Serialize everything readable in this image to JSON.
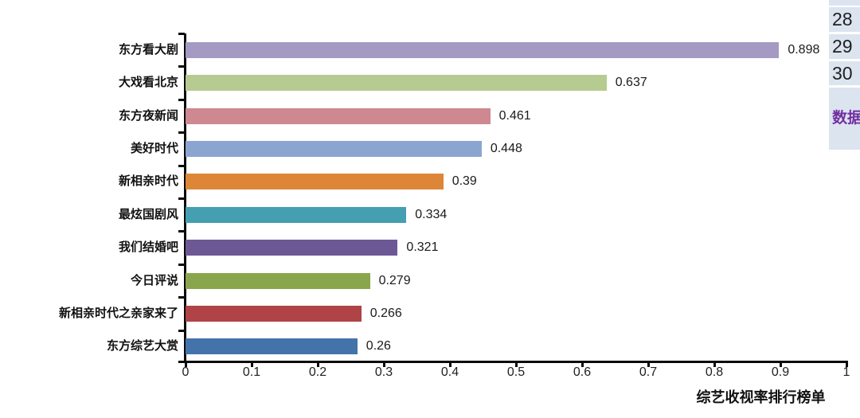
{
  "chart_data": {
    "type": "bar",
    "orientation": "horizontal",
    "title": "",
    "xlabel": "综艺收视率排行榜单",
    "ylabel": "",
    "categories": [
      "东方看大剧",
      "大戏看北京",
      "东方夜新闻",
      "美好时代",
      "新相亲时代",
      "最炫国剧风",
      "我们结婚吧",
      "今日评说",
      "新相亲时代之亲家来了",
      "东方综艺大赏"
    ],
    "values": [
      0.898,
      0.637,
      0.461,
      0.448,
      0.39,
      0.334,
      0.321,
      0.279,
      0.266,
      0.26
    ],
    "value_labels": [
      "0.898",
      "0.637",
      "0.461",
      "0.448",
      "0.39",
      "0.334",
      "0.321",
      "0.279",
      "0.266",
      "0.26"
    ],
    "bar_colors": [
      "#a49ac4",
      "#b5cb90",
      "#cd8890",
      "#8ba5d1",
      "#dd8638",
      "#449fb0",
      "#6d5896",
      "#8aa64c",
      "#af4345",
      "#4473ac"
    ],
    "xlim": [
      0,
      1
    ],
    "x_ticks": [
      0,
      0.1,
      0.2,
      0.3,
      0.4,
      0.5,
      0.6,
      0.7,
      0.8,
      0.9,
      1
    ],
    "x_tick_labels": [
      "0",
      "0.1",
      "0.2",
      "0.3",
      "0.4",
      "0.5",
      "0.6",
      "0.7",
      "0.8",
      "0.9",
      "1"
    ],
    "grid": false,
    "legend": "none",
    "axis_color": "#0a0a0a"
  },
  "side_panel": {
    "row_numbers": [
      "28",
      "29",
      "30"
    ],
    "data_label": "数据",
    "data_label_color": "#7030a0",
    "cell_bg": "#dce4f0"
  }
}
